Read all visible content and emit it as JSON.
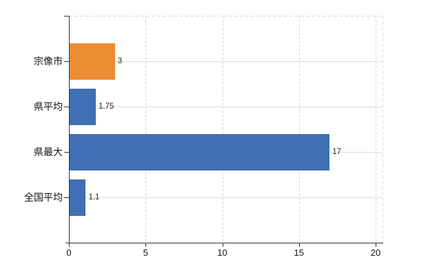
{
  "chart_data": {
    "type": "bar",
    "orientation": "horizontal",
    "title": "",
    "categories": [
      "宗像市",
      "県平均",
      "県最大",
      "全国平均"
    ],
    "values": [
      3,
      1.75,
      17,
      1.1
    ],
    "value_labels": [
      "3",
      "1.75",
      "17",
      "1.1"
    ],
    "bar_colors": [
      "#ec8c34",
      "#3f70b3",
      "#3f70b3",
      "#3f70b3"
    ],
    "x_tick_values": [
      0,
      5,
      10,
      15,
      20
    ],
    "x_tick_labels": [
      "0",
      "5",
      "10",
      "15",
      "20"
    ],
    "xlim": [
      0,
      20.5
    ],
    "grid": true,
    "legend_position": "none"
  },
  "colors": {
    "highlight_bar": "#ec8c34",
    "default_bar": "#3f70b3",
    "gridline": "#d9d9d9",
    "axis": "#333333",
    "label_text": "#111111",
    "value_text": "#262626",
    "background": "#ffffff"
  }
}
